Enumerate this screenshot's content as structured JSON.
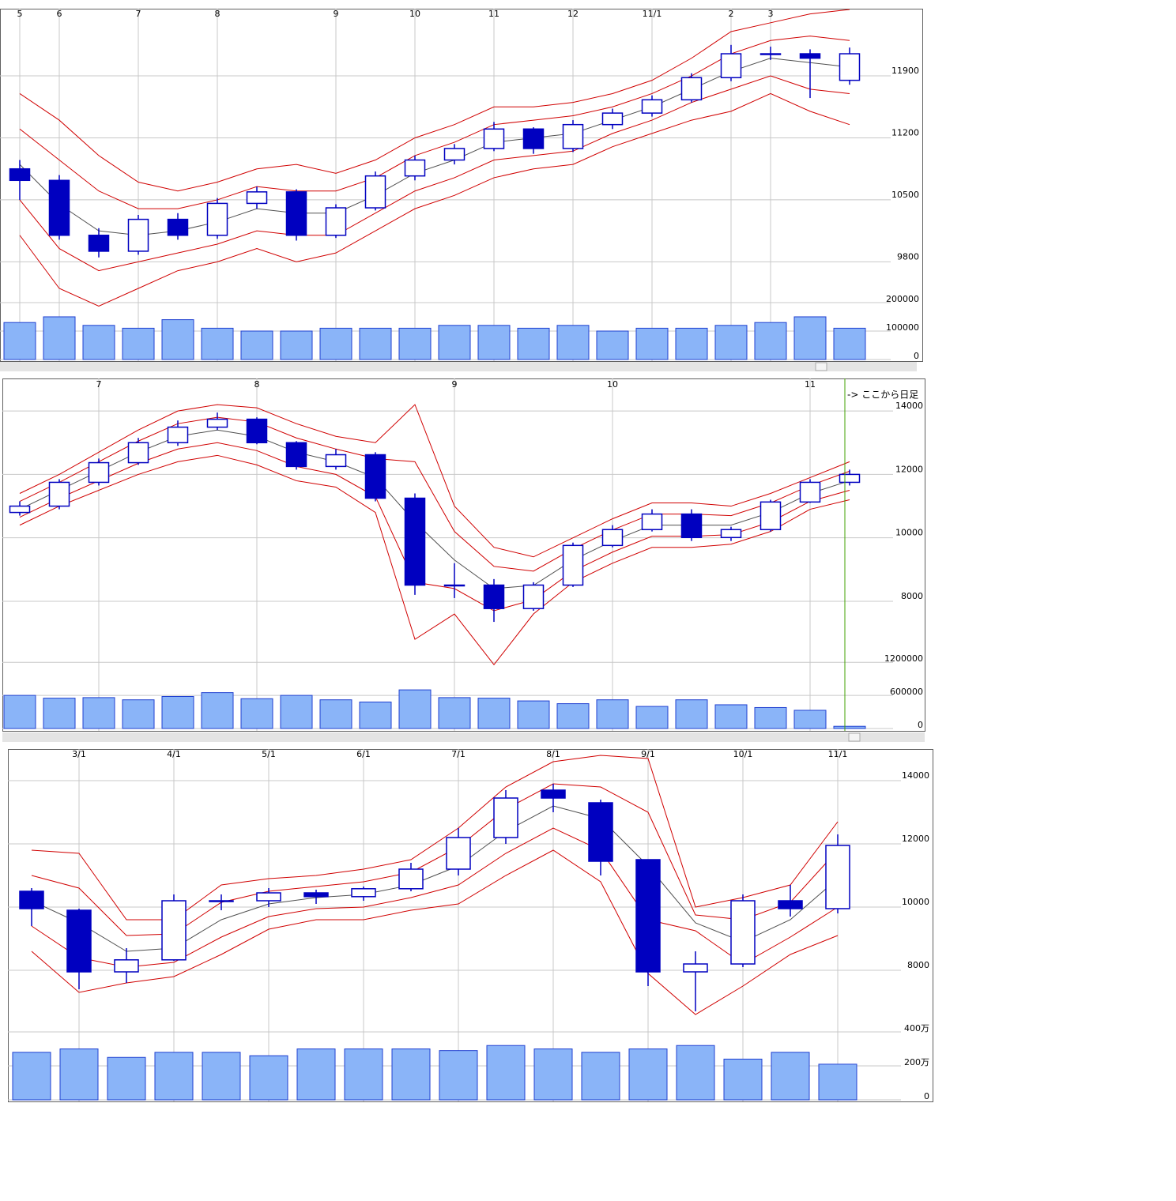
{
  "chart_data": [
    {
      "type": "candlestick",
      "categories": [
        "5",
        "6",
        null,
        "7",
        null,
        "8",
        null,
        null,
        "9",
        null,
        "10",
        null,
        "11",
        null,
        "12",
        null,
        "11/1",
        null,
        "2",
        "3",
        null,
        null
      ],
      "open": [
        10850,
        10720,
        10100,
        9920,
        10280,
        10100,
        10460,
        10590,
        10100,
        10410,
        10770,
        10950,
        11080,
        11300,
        11080,
        11350,
        11480,
        11630,
        11880,
        12150,
        12150,
        11850
      ],
      "high": [
        10950,
        10780,
        10180,
        10330,
        10350,
        10520,
        10650,
        10620,
        10450,
        10820,
        11000,
        11130,
        11380,
        11320,
        11400,
        11530,
        11680,
        11930,
        12250,
        12230,
        12200,
        12220
      ],
      "low": [
        10500,
        10050,
        9850,
        9880,
        10050,
        10060,
        10400,
        10040,
        10070,
        10380,
        10720,
        10900,
        11050,
        11020,
        11040,
        11300,
        11440,
        11600,
        11840,
        12080,
        11650,
        11800
      ],
      "close": [
        10720,
        10100,
        9920,
        10280,
        10100,
        10460,
        10590,
        10100,
        10410,
        10770,
        10950,
        11080,
        11300,
        11080,
        11350,
        11480,
        11630,
        11880,
        12150,
        12150,
        12100,
        12150
      ],
      "volume": [
        130000,
        150000,
        120000,
        110000,
        140000,
        110000,
        100000,
        100000,
        110000,
        110000,
        110000,
        120000,
        120000,
        110000,
        120000,
        100000,
        110000,
        110000,
        120000,
        130000,
        150000,
        110000
      ],
      "bands": [
        {
          "color": "#d00000",
          "values": [
            11700,
            11400,
            11000,
            10700,
            10600,
            10700,
            10850,
            10900,
            10800,
            10950,
            11200,
            11350,
            11550,
            11550,
            11600,
            11700,
            11850,
            12100,
            12400,
            12500,
            12600,
            12650
          ]
        },
        {
          "color": "#d00000",
          "values": [
            11300,
            10950,
            10600,
            10400,
            10400,
            10500,
            10650,
            10600,
            10600,
            10750,
            11000,
            11150,
            11350,
            11400,
            11450,
            11550,
            11700,
            11900,
            12150,
            12300,
            12350,
            12300
          ]
        },
        {
          "color": "#505050",
          "values": [
            10900,
            10450,
            10150,
            10100,
            10150,
            10250,
            10400,
            10350,
            10350,
            10550,
            10800,
            10950,
            11150,
            11200,
            11250,
            11400,
            11550,
            11750,
            11950,
            12100,
            12050,
            12000
          ]
        },
        {
          "color": "#d00000",
          "values": [
            10500,
            9950,
            9700,
            9800,
            9900,
            10000,
            10150,
            10100,
            10100,
            10350,
            10600,
            10750,
            10950,
            11000,
            11050,
            11250,
            11400,
            11600,
            11750,
            11900,
            11750,
            11700
          ]
        },
        {
          "color": "#d00000",
          "values": [
            10100,
            9500,
            9300,
            9500,
            9700,
            9800,
            9950,
            9800,
            9900,
            10150,
            10400,
            10550,
            10750,
            10850,
            10900,
            11100,
            11250,
            11400,
            11500,
            11700,
            11500,
            11350
          ]
        }
      ],
      "color": "#0000c0",
      "volume_color": "#8ab4f8",
      "ylim": [
        9500,
        12650
      ],
      "yticks": [
        9800,
        10500,
        11200,
        11900
      ],
      "volume_ylim": [
        0,
        236000
      ],
      "volume_yticks": [
        0,
        100000,
        200000
      ],
      "grid": true
    },
    {
      "type": "candlestick",
      "categories": [
        null,
        null,
        "7",
        null,
        null,
        null,
        "8",
        null,
        null,
        null,
        null,
        "9",
        null,
        null,
        null,
        "10",
        null,
        null,
        null,
        null,
        "11",
        null
      ],
      "open": [
        10800,
        11000,
        11750,
        12370,
        13000,
        13490,
        13740,
        13000,
        12250,
        12620,
        11250,
        8510,
        8510,
        7770,
        8510,
        9760,
        10260,
        10750,
        10010,
        10260,
        11130,
        11750
      ],
      "high": [
        11150,
        11850,
        12500,
        13150,
        13700,
        13950,
        13800,
        13050,
        12800,
        12700,
        11400,
        9200,
        8700,
        8600,
        9850,
        10400,
        10900,
        10900,
        10350,
        11200,
        11850,
        12150
      ],
      "low": [
        10700,
        10900,
        11650,
        12300,
        12900,
        13400,
        12950,
        12150,
        12150,
        11150,
        8200,
        8100,
        7350,
        7700,
        8450,
        9700,
        10200,
        9900,
        9900,
        10200,
        11100,
        11650
      ],
      "close": [
        11000,
        11750,
        12370,
        13000,
        13490,
        13740,
        13000,
        12250,
        12620,
        11250,
        8510,
        8510,
        7770,
        8510,
        9760,
        10260,
        10750,
        10010,
        10260,
        11130,
        11750,
        12000
      ],
      "volume": [
        600000,
        550000,
        560000,
        520000,
        580000,
        650000,
        540000,
        600000,
        520000,
        480000,
        700000,
        560000,
        550000,
        500000,
        450000,
        520000,
        400000,
        520000,
        430000,
        380000,
        330000,
        40000
      ],
      "bands": [
        {
          "color": "#d00000",
          "values": [
            11400,
            12000,
            12700,
            13400,
            14000,
            14200,
            14100,
            13600,
            13200,
            13000,
            14200,
            11000,
            9700,
            9400,
            10000,
            10600,
            11100,
            11100,
            11000,
            11400,
            11900,
            12400
          ]
        },
        {
          "color": "#d00000",
          "values": [
            11150,
            11750,
            12400,
            13050,
            13600,
            13800,
            13650,
            13150,
            12800,
            12500,
            12400,
            10200,
            9100,
            8950,
            9650,
            10250,
            10750,
            10750,
            10700,
            11100,
            11650,
            12100
          ]
        },
        {
          "color": "#505050",
          "values": [
            10900,
            11500,
            12100,
            12700,
            13200,
            13400,
            13200,
            12700,
            12400,
            11900,
            10500,
            9300,
            8400,
            8500,
            9300,
            9900,
            10400,
            10400,
            10400,
            10800,
            11400,
            11800
          ]
        },
        {
          "color": "#d00000",
          "values": [
            10650,
            11250,
            11800,
            12350,
            12800,
            13000,
            12750,
            12250,
            12000,
            11300,
            8600,
            8400,
            7700,
            8050,
            8950,
            9550,
            10050,
            10050,
            10100,
            10500,
            11150,
            11500
          ]
        },
        {
          "color": "#d00000",
          "values": [
            10400,
            11000,
            11500,
            12000,
            12400,
            12600,
            12300,
            11800,
            11600,
            10800,
            6800,
            7600,
            6000,
            7600,
            8600,
            9200,
            9700,
            9700,
            9800,
            10200,
            10900,
            11200
          ]
        }
      ],
      "color": "#0000c0",
      "volume_color": "#8ab4f8",
      "ylim": [
        6280,
        14950
      ],
      "yticks": [
        8000,
        10000,
        12000,
        14000
      ],
      "volume_ylim": [
        0,
        1260000
      ],
      "volume_yticks": [
        0,
        600000,
        1200000
      ],
      "grid": true,
      "annotation": "-> ここから日足",
      "annotation_color": "#40a000"
    },
    {
      "type": "candlestick",
      "categories": [
        null,
        "3/1",
        null,
        "4/1",
        null,
        "5/1",
        null,
        "6/1",
        null,
        "7/1",
        null,
        "8/1",
        null,
        "9/1",
        null,
        "10/1",
        null,
        "11/1"
      ],
      "open": [
        10500,
        9900,
        7950,
        8330,
        10200,
        10200,
        10450,
        10330,
        10580,
        11200,
        12200,
        13700,
        13300,
        11500,
        7950,
        8200,
        10200,
        9950
      ],
      "high": [
        10600,
        9950,
        8700,
        10400,
        10400,
        10600,
        10550,
        10650,
        11400,
        12500,
        13700,
        13900,
        13400,
        11500,
        8600,
        10400,
        10700,
        12300
      ],
      "low": [
        9400,
        7400,
        7600,
        8300,
        9900,
        10000,
        10100,
        10200,
        10500,
        11000,
        12000,
        13000,
        11000,
        7500,
        6700,
        8100,
        9700,
        9800
      ],
      "close": [
        9950,
        7950,
        8330,
        10200,
        10200,
        10450,
        10330,
        10580,
        11200,
        12200,
        13450,
        13450,
        11450,
        7950,
        8200,
        10200,
        9950,
        11950
      ],
      "volume": [
        2800000,
        3000000,
        2500000,
        2800000,
        2800000,
        2600000,
        3000000,
        3000000,
        3000000,
        2900000,
        3200000,
        3000000,
        2800000,
        3000000,
        3200000,
        2400000,
        2800000,
        2100000
      ],
      "bands": [
        {
          "color": "#d00000",
          "values": [
            11800,
            11700,
            9600,
            9600,
            10700,
            10900,
            11000,
            11200,
            11500,
            12500,
            13800,
            14600,
            14800,
            14700,
            10000,
            10300,
            10700,
            12700
          ]
        },
        {
          "color": "#d00000",
          "values": [
            11000,
            10600,
            9100,
            9150,
            10150,
            10500,
            10650,
            10800,
            11100,
            11900,
            13100,
            13900,
            13800,
            13000,
            9750,
            9600,
            10150,
            11800
          ]
        },
        {
          "color": "#505050",
          "values": [
            10200,
            9500,
            8600,
            8700,
            9600,
            10100,
            10300,
            10400,
            10700,
            11300,
            12400,
            13200,
            12800,
            11300,
            9500,
            8900,
            9600,
            10900
          ]
        },
        {
          "color": "#d00000",
          "values": [
            9400,
            8400,
            8100,
            8250,
            9050,
            9700,
            9950,
            10000,
            10300,
            10700,
            11700,
            12500,
            11800,
            9600,
            9250,
            8200,
            9050,
            10000
          ]
        },
        {
          "color": "#d00000",
          "values": [
            8600,
            7300,
            7600,
            7800,
            8500,
            9300,
            9600,
            9600,
            9900,
            10100,
            11000,
            11800,
            10800,
            7900,
            6600,
            7500,
            8500,
            9100
          ]
        }
      ],
      "color": "#0000c0",
      "volume_color": "#8ab4f8",
      "ylim": [
        6250,
        14950
      ],
      "yticks": [
        8000,
        10000,
        12000,
        14000
      ],
      "volume_ylim": [
        0,
        4280000
      ],
      "volume_yticks": [
        0,
        {
          "value": 2000000,
          "label": "200万"
        },
        {
          "value": 4000000,
          "label": "400万"
        }
      ],
      "grid": true
    }
  ]
}
